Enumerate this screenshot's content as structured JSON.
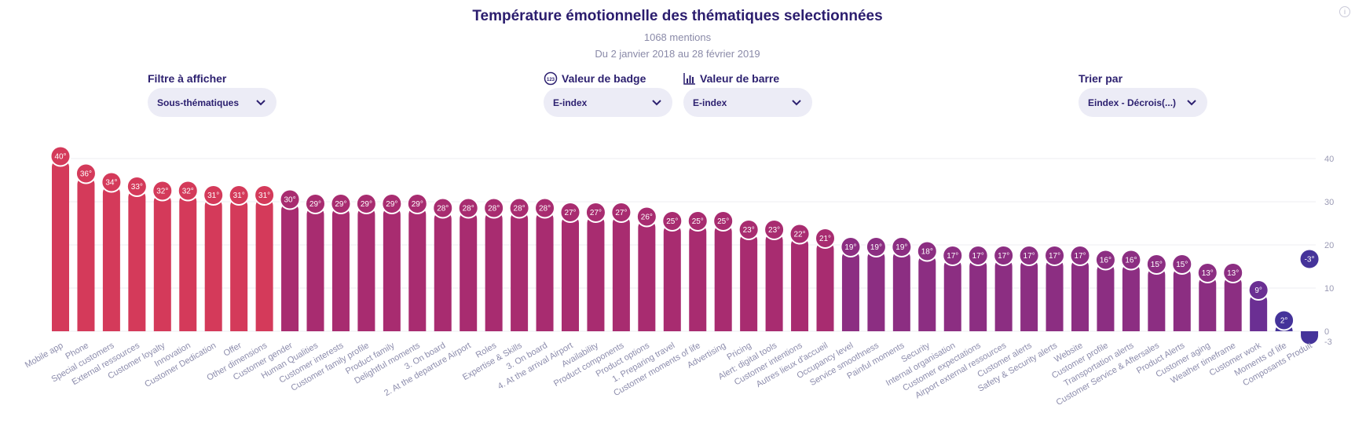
{
  "header": {
    "title": "Température émotionnelle des thématiques selectionnées",
    "mentions": "1068 mentions",
    "date_range": "Du 2 janvier 2018 au 28 février 2019"
  },
  "info_icon": "info-icon",
  "filters": {
    "display_filter": {
      "label": "Filtre à afficher",
      "value": "Sous-thématiques"
    },
    "badge_value": {
      "label": "Valeur de badge",
      "icon": "number-badge-icon",
      "value": "E-index"
    },
    "bar_value": {
      "label": "Valeur de barre",
      "icon": "bar-chart-icon",
      "value": "E-index"
    },
    "sort_by": {
      "label": "Trier par",
      "value": "Eindex - Décrois(...)"
    }
  },
  "colors": {
    "hot": "#d43a5a",
    "warm": "#a82c70",
    "mid": "#8c2e82",
    "cool": "#6b2f93",
    "cold": "#45339a"
  },
  "chart_data": {
    "type": "bar",
    "categories": [
      "Mobile app",
      "Phone",
      "Special customers",
      "External ressources",
      "Customer loyalty",
      "Innovation",
      "Customer Dedication",
      "Offer",
      "Other dimensions",
      "Customer gender",
      "Human Qualities",
      "Customer interests",
      "Customer family profile",
      "Product family",
      "Delightful moments",
      "3. On board",
      "2. At the departure Airport",
      "Roles",
      "Expertise & Skills",
      "3. On board",
      "4. At the arrival Airport",
      "Availability",
      "Product components",
      "Product options",
      "1. Preparing travel",
      "Customer moments of life",
      "Advertising",
      "Pricing",
      "Alert: digital tools",
      "Customer intentions",
      "Autres lieux d'accueil",
      "Occupancy level",
      "Service smoothness",
      "Painful moments",
      "Security",
      "Internal organisation",
      "Customer expectations",
      "Airport external ressources",
      "Customer alerts",
      "Safety & Security alerts",
      "Website",
      "Customer profile",
      "Transportation alerts",
      "Customer Service & Aftersales",
      "Product Alerts",
      "Customer aging",
      "Weather timeframe",
      "Customer work",
      "Moments of life",
      "Composants Produit"
    ],
    "values": [
      40,
      36,
      34,
      33,
      32,
      32,
      31,
      31,
      31,
      30,
      29,
      29,
      29,
      29,
      29,
      28,
      28,
      28,
      28,
      28,
      27,
      27,
      27,
      26,
      25,
      25,
      25,
      23,
      23,
      22,
      21,
      19,
      19,
      19,
      18,
      17,
      17,
      17,
      17,
      17,
      17,
      16,
      16,
      15,
      15,
      13,
      13,
      9,
      2,
      -3
    ],
    "badges": [
      "40°",
      "36°",
      "34°",
      "33°",
      "32°",
      "32°",
      "31°",
      "31°",
      "31°",
      "30°",
      "29°",
      "29°",
      "29°",
      "29°",
      "29°",
      "28°",
      "28°",
      "28°",
      "28°",
      "28°",
      "27°",
      "27°",
      "27°",
      "26°",
      "25°",
      "25°",
      "25°",
      "23°",
      "23°",
      "22°",
      "21°",
      "19°",
      "19°",
      "19°",
      "18°",
      "17°",
      "17°",
      "17°",
      "17°",
      "17°",
      "17°",
      "16°",
      "16°",
      "15°",
      "15°",
      "13°",
      "13°",
      "9°",
      "2°",
      "-3°"
    ],
    "yticks": [
      "40",
      "30",
      "20",
      "10",
      "0",
      "-3"
    ],
    "ylim": [
      -3,
      40
    ],
    "grid": true,
    "axis_position": "right"
  }
}
